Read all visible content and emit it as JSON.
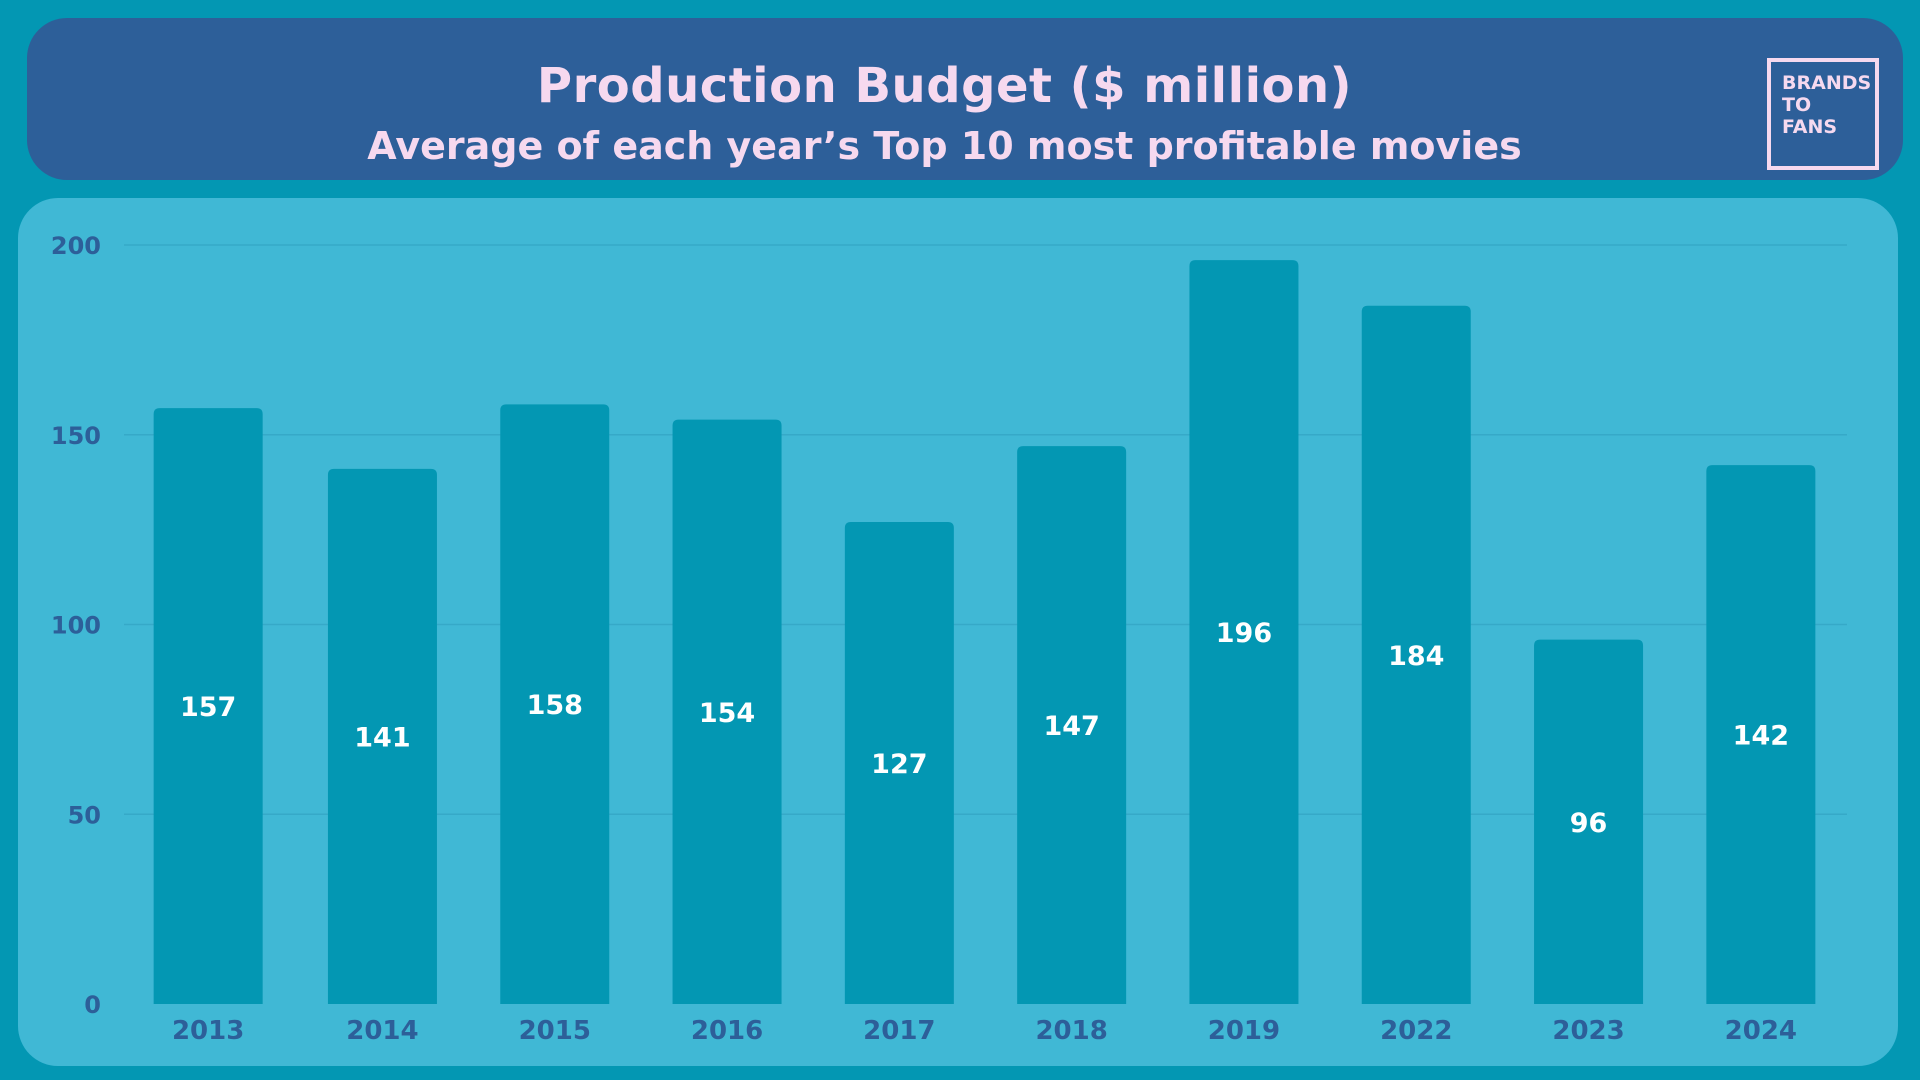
{
  "header": {
    "title": "Production Budget ($ million)",
    "subtitle": "Average of each year’s Top 10 most profitable movies"
  },
  "logo": {
    "line1": "BRANDS",
    "line2": "TO",
    "line3": "FANS"
  },
  "colors": {
    "background": "#0397b3",
    "header": "#2d5f99",
    "panel": "#40b8d5",
    "bar": "#0397b3",
    "title_text": "#f6d9ef",
    "axis_text": "#2d5f99",
    "value_text": "#ffffff"
  },
  "chart_data": {
    "type": "bar",
    "title": "Production Budget ($ million)",
    "subtitle": "Average of each year’s Top 10 most profitable movies",
    "categories": [
      "2013",
      "2014",
      "2015",
      "2016",
      "2017",
      "2018",
      "2019",
      "2022",
      "2023",
      "2024"
    ],
    "values": [
      157,
      141,
      158,
      154,
      127,
      147,
      196,
      184,
      96,
      142
    ],
    "yticks": [
      0,
      50,
      100,
      150,
      200
    ],
    "ylim": [
      0,
      200
    ],
    "grid": true,
    "data_labels": true,
    "xlabel": "",
    "ylabel": ""
  }
}
